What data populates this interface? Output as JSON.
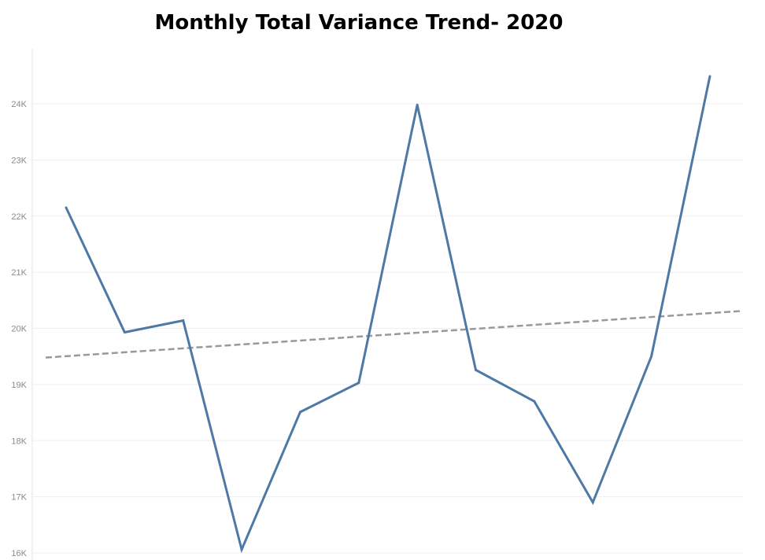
{
  "chart_data": {
    "type": "line",
    "title": "Monthly Total Variance Trend- 2020",
    "xlabel": "",
    "ylabel": "",
    "ylim": [
      16000,
      24900
    ],
    "y_ticks": [
      {
        "value": 16000,
        "label": "16K"
      },
      {
        "value": 17000,
        "label": "17K"
      },
      {
        "value": 18000,
        "label": "18K"
      },
      {
        "value": 19000,
        "label": "19K"
      },
      {
        "value": 20000,
        "label": "20K"
      },
      {
        "value": 21000,
        "label": "21K"
      },
      {
        "value": 22000,
        "label": "22K"
      },
      {
        "value": 23000,
        "label": "23K"
      },
      {
        "value": 24000,
        "label": "24K"
      }
    ],
    "grid": true,
    "series": [
      {
        "color": "#4e79a7",
        "x": [
          1,
          2,
          3,
          4,
          5,
          6,
          7,
          8,
          9,
          10,
          11,
          12
        ],
        "values": [
          22150,
          19930,
          20140,
          16060,
          18510,
          19030,
          23980,
          19260,
          18700,
          16900,
          19500,
          24490
        ]
      }
    ],
    "trend_line": {
      "style": "dashed",
      "color": "#999999",
      "start": {
        "x": 0.65,
        "y": 19480
      },
      "end": {
        "x": 12.55,
        "y": 20310
      }
    }
  }
}
